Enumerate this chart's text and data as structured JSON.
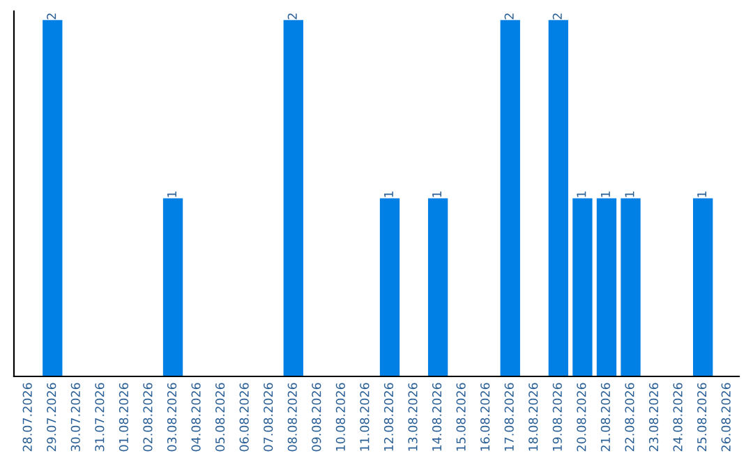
{
  "chart_data": {
    "type": "bar",
    "categories": [
      "28.07.2026",
      "29.07.2026",
      "30.07.2026",
      "31.07.2026",
      "01.08.2026",
      "02.08.2026",
      "03.08.2026",
      "04.08.2026",
      "05.08.2026",
      "06.08.2026",
      "07.08.2026",
      "08.08.2026",
      "09.08.2026",
      "10.08.2026",
      "11.08.2026",
      "12.08.2026",
      "13.08.2026",
      "14.08.2026",
      "15.08.2026",
      "16.08.2026",
      "17.08.2026",
      "18.08.2026",
      "19.08.2026",
      "20.08.2026",
      "21.08.2026",
      "22.08.2026",
      "23.08.2026",
      "24.08.2026",
      "25.08.2026",
      "26.08.2026"
    ],
    "values": [
      0,
      2,
      0,
      0,
      0,
      0,
      1,
      0,
      0,
      0,
      0,
      2,
      0,
      0,
      0,
      1,
      0,
      1,
      0,
      0,
      2,
      0,
      2,
      1,
      1,
      1,
      0,
      0,
      1,
      0
    ],
    "value_labels": [
      null,
      "2",
      null,
      null,
      null,
      null,
      "1",
      null,
      null,
      null,
      null,
      "2",
      null,
      null,
      null,
      "1",
      null,
      "1",
      null,
      null,
      "2",
      null,
      "2",
      "1",
      "1",
      "1",
      null,
      null,
      "1",
      null
    ],
    "color": "#007fe5",
    "ylim": [
      0,
      2.05
    ],
    "tick_labels": "x",
    "grid": false
  }
}
